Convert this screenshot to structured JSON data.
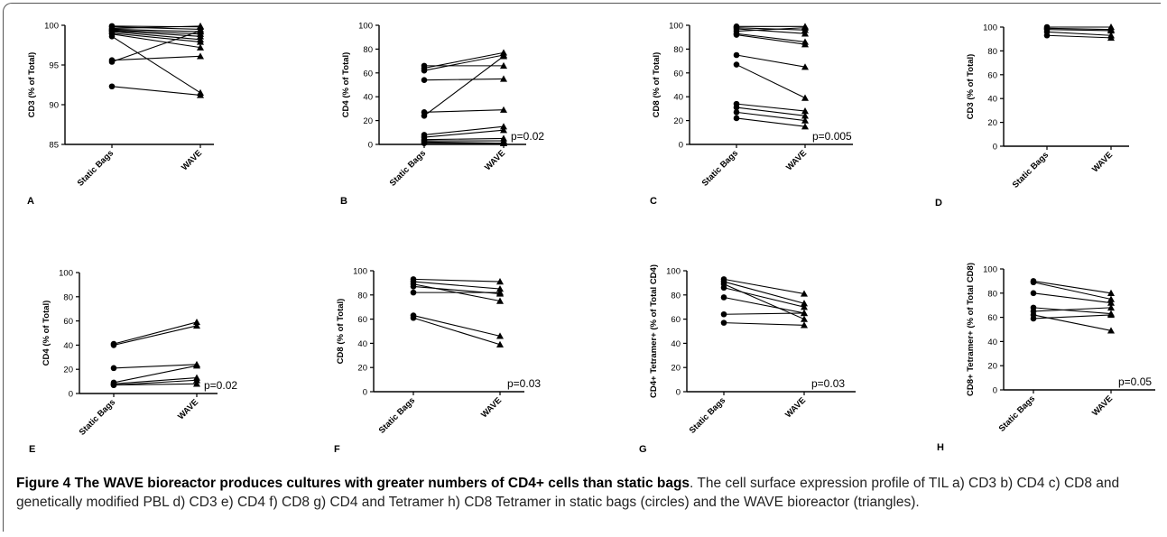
{
  "chart_data": [
    {
      "id": "A",
      "type": "line",
      "panel_label": "A",
      "ylabel": "CD3 (% of Total)",
      "categories": [
        "Static Bags",
        "WAVE"
      ],
      "ylim": [
        85,
        100
      ],
      "yticks": [
        85,
        90,
        95,
        100
      ],
      "pvalue": "",
      "pairs": [
        [
          99.9,
          99.8
        ],
        [
          99.8,
          99.5
        ],
        [
          99.6,
          99.9
        ],
        [
          99.5,
          99.2
        ],
        [
          99.4,
          98.9
        ],
        [
          99.3,
          98.6
        ],
        [
          99.2,
          98.2
        ],
        [
          99.0,
          97.9
        ],
        [
          98.9,
          97.2
        ],
        [
          98.6,
          91.5
        ],
        [
          95.6,
          96.1
        ],
        [
          95.4,
          99.3
        ],
        [
          92.3,
          91.2
        ]
      ]
    },
    {
      "id": "B",
      "type": "line",
      "panel_label": "B",
      "ylabel": "CD4 (% of Total)",
      "categories": [
        "Static Bags",
        "WAVE"
      ],
      "ylim": [
        0,
        100
      ],
      "yticks": [
        0,
        20,
        40,
        60,
        80,
        100
      ],
      "pvalue": "p=0.02",
      "pairs": [
        [
          66,
          66
        ],
        [
          64,
          77
        ],
        [
          62,
          75
        ],
        [
          54,
          55
        ],
        [
          27,
          29
        ],
        [
          24,
          74
        ],
        [
          8,
          15
        ],
        [
          6,
          12
        ],
        [
          4,
          5
        ],
        [
          3,
          3
        ],
        [
          2,
          1
        ],
        [
          1,
          1
        ]
      ]
    },
    {
      "id": "C",
      "type": "line",
      "panel_label": "C",
      "ylabel": "CD8 (% of Total)",
      "categories": [
        "Static Bags",
        "WAVE"
      ],
      "ylim": [
        0,
        100
      ],
      "yticks": [
        0,
        20,
        40,
        60,
        80,
        100
      ],
      "pvalue": "p=0.005",
      "pairs": [
        [
          99,
          99
        ],
        [
          98,
          96
        ],
        [
          97,
          93
        ],
        [
          95,
          98
        ],
        [
          93,
          86
        ],
        [
          92,
          84
        ],
        [
          75,
          65
        ],
        [
          67,
          39
        ],
        [
          34,
          28
        ],
        [
          31,
          24
        ],
        [
          27,
          20
        ],
        [
          22,
          15
        ]
      ]
    },
    {
      "id": "D",
      "type": "line",
      "panel_label": "D",
      "ylabel": "CD3 (% of Total)",
      "categories": [
        "Static Bags",
        "WAVE"
      ],
      "ylim": [
        0,
        100
      ],
      "yticks": [
        0,
        20,
        40,
        60,
        80,
        100
      ],
      "pvalue": "",
      "pairs": [
        [
          100,
          100
        ],
        [
          99,
          98
        ],
        [
          98,
          97
        ],
        [
          96,
          93
        ],
        [
          93,
          91
        ]
      ]
    },
    {
      "id": "E",
      "type": "line",
      "panel_label": "E",
      "ylabel": "CD4 (% of Total)",
      "categories": [
        "Static Bags",
        "WAVE"
      ],
      "ylim": [
        0,
        100
      ],
      "yticks": [
        0,
        20,
        40,
        60,
        80,
        100
      ],
      "pvalue": "p=0.02",
      "pairs": [
        [
          41,
          59
        ],
        [
          40,
          56
        ],
        [
          21,
          24
        ],
        [
          9,
          23
        ],
        [
          8,
          13
        ],
        [
          7,
          11
        ],
        [
          7,
          8
        ]
      ]
    },
    {
      "id": "F",
      "type": "line",
      "panel_label": "F",
      "ylabel": "CD8 (% of Total)",
      "categories": [
        "Static Bags",
        "WAVE"
      ],
      "ylim": [
        0,
        100
      ],
      "yticks": [
        0,
        20,
        40,
        60,
        80,
        100
      ],
      "pvalue": "p=0.03",
      "pairs": [
        [
          93,
          91
        ],
        [
          91,
          85
        ],
        [
          89,
          75
        ],
        [
          87,
          81
        ],
        [
          82,
          82
        ],
        [
          63,
          46
        ],
        [
          61,
          39
        ]
      ]
    },
    {
      "id": "G",
      "type": "line",
      "panel_label": "G",
      "ylabel": "CD4+ Tetramer+ (% of Total CD4)",
      "categories": [
        "Static Bags",
        "WAVE"
      ],
      "ylim": [
        0,
        100
      ],
      "yticks": [
        0,
        20,
        40,
        60,
        80,
        100
      ],
      "pvalue": "p=0.03",
      "pairs": [
        [
          93,
          81
        ],
        [
          91,
          73
        ],
        [
          89,
          60
        ],
        [
          86,
          70
        ],
        [
          78,
          65
        ],
        [
          64,
          65
        ],
        [
          57,
          55
        ]
      ]
    },
    {
      "id": "H",
      "type": "line",
      "panel_label": "H",
      "ylabel": "CD8+ Tetramer+ (% of Total CD8)",
      "categories": [
        "Static Bags",
        "WAVE"
      ],
      "ylim": [
        0,
        100
      ],
      "yticks": [
        0,
        20,
        40,
        60,
        80,
        100
      ],
      "pvalue": "p=0.05",
      "pairs": [
        [
          90,
          80
        ],
        [
          89,
          75
        ],
        [
          80,
          72
        ],
        [
          68,
          63
        ],
        [
          65,
          68
        ],
        [
          62,
          49
        ],
        [
          59,
          62
        ]
      ]
    }
  ],
  "caption": {
    "title": "Figure 4 The WAVE bioreactor produces cultures with greater numbers of CD4+ cells than static bags",
    "text": ". The cell surface expression profile of TIL a) CD3 b) CD4 c) CD8 and genetically modified PBL d) CD3 e) CD4 f) CD8 g) CD4 and Tetramer h) CD8 Tetramer in static bags (circles) and the WAVE bioreactor (triangles)."
  }
}
